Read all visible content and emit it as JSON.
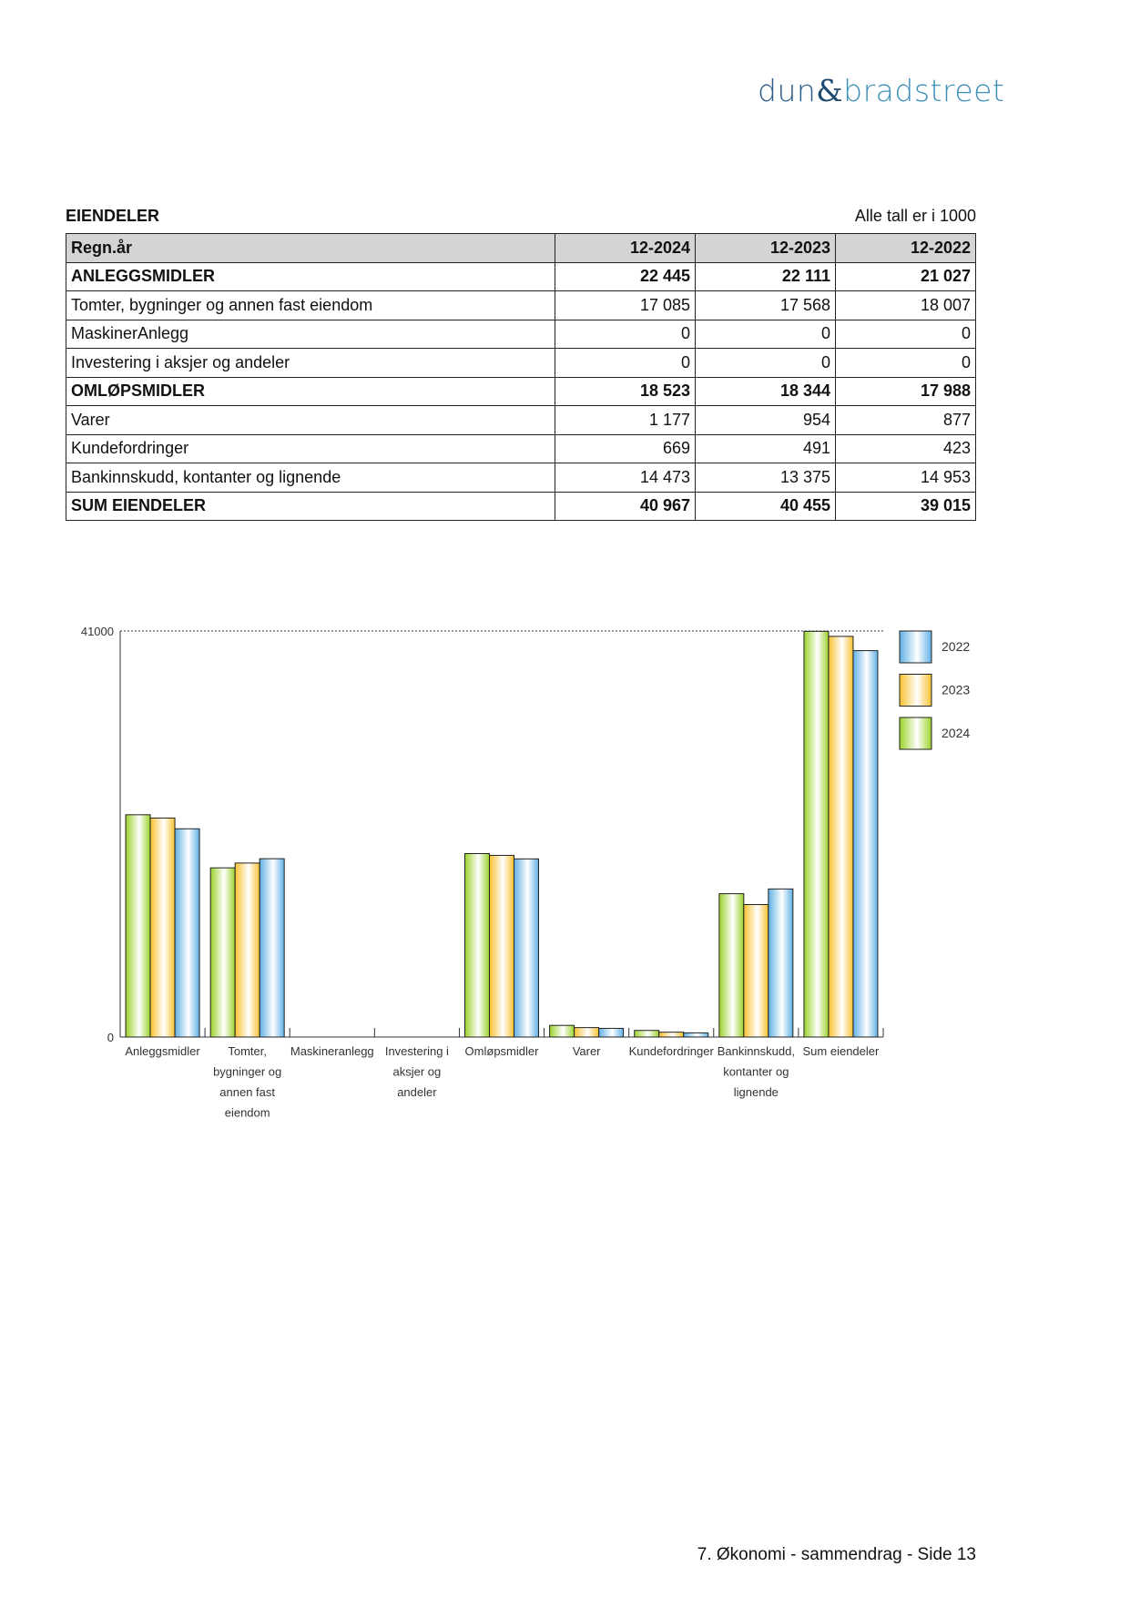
{
  "logo": {
    "text_a": "dun",
    "text_amp": "&",
    "text_b": "bradstreet"
  },
  "section_title": "EIENDELER",
  "unit_note": "Alle tall er i 1000",
  "table": {
    "headers": [
      "Regn.år",
      "12-2024",
      "12-2023",
      "12-2022"
    ],
    "rows": [
      {
        "label": "ANLEGGSMIDLER",
        "values": [
          "22 445",
          "22 111",
          "21 027"
        ],
        "bold": true
      },
      {
        "label": "Tomter, bygninger og annen fast eiendom",
        "values": [
          "17 085",
          "17 568",
          "18 007"
        ],
        "bold": false
      },
      {
        "label": "MaskinerAnlegg",
        "values": [
          "0",
          "0",
          "0"
        ],
        "bold": false
      },
      {
        "label": "Investering i aksjer og andeler",
        "values": [
          "0",
          "0",
          "0"
        ],
        "bold": false
      },
      {
        "label": "OMLØPSMIDLER",
        "values": [
          "18 523",
          "18 344",
          "17 988"
        ],
        "bold": true
      },
      {
        "label": "Varer",
        "values": [
          "1 177",
          "954",
          "877"
        ],
        "bold": false
      },
      {
        "label": "Kundefordringer",
        "values": [
          "669",
          "491",
          "423"
        ],
        "bold": false
      },
      {
        "label": "Bankinnskudd, kontanter og lignende",
        "values": [
          "14 473",
          "13 375",
          "14 953"
        ],
        "bold": false
      },
      {
        "label": "SUM EIENDELER",
        "values": [
          "40 967",
          "40 455",
          "39 015"
        ],
        "bold": true
      }
    ]
  },
  "chart_data": {
    "type": "bar",
    "categories": [
      [
        "Anleggsmidler"
      ],
      [
        "Tomter,",
        "bygninger og",
        "annen fast",
        "eiendom"
      ],
      [
        "Maskineranlegg"
      ],
      [
        "Investering i",
        "aksjer og",
        "andeler"
      ],
      [
        "Omløpsmidler"
      ],
      [
        "Varer"
      ],
      [
        "Kundefordringer"
      ],
      [
        "Bankinnskudd,",
        "kontanter og",
        "lignende"
      ],
      [
        "Sum eiendeler"
      ]
    ],
    "series": [
      {
        "name": "2024",
        "color": "#9bd22a",
        "values": [
          22445,
          17085,
          0,
          0,
          18523,
          1177,
          669,
          14473,
          40967
        ]
      },
      {
        "name": "2023",
        "color": "#f8c12e",
        "values": [
          22111,
          17568,
          0,
          0,
          18344,
          954,
          491,
          13375,
          40455
        ]
      },
      {
        "name": "2022",
        "color": "#5fb0e4",
        "values": [
          21027,
          18007,
          0,
          0,
          17988,
          877,
          423,
          14953,
          39015
        ]
      }
    ],
    "legend_order": [
      "2022",
      "2023",
      "2024"
    ],
    "legend_position": "right",
    "ylim": [
      0,
      41000
    ],
    "yticks": [
      "0",
      "41000"
    ]
  },
  "footer": "7. Økonomi - sammendrag - Side 13"
}
